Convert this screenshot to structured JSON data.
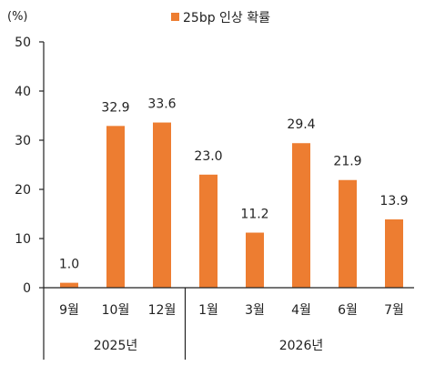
{
  "chart_data": {
    "type": "bar",
    "unit_label": "(%)",
    "legend": [
      {
        "name": "25bp 인상 확률",
        "color": "#ED7D31"
      }
    ],
    "categories": [
      "9월",
      "10월",
      "12월",
      "1월",
      "3월",
      "4월",
      "6월",
      "7월"
    ],
    "groups": [
      {
        "label": "2025년",
        "categories": [
          "9월",
          "10월",
          "12월"
        ]
      },
      {
        "label": "2026년",
        "categories": [
          "1월",
          "3월",
          "4월",
          "6월",
          "7월"
        ]
      }
    ],
    "series": [
      {
        "name": "25bp 인상 확률",
        "color": "#ED7D31",
        "values": [
          1.0,
          32.9,
          33.6,
          23.0,
          11.2,
          29.4,
          21.9,
          13.9
        ]
      }
    ],
    "data_labels": [
      "1.0",
      "32.9",
      "33.6",
      "23.0",
      "11.2",
      "29.4",
      "21.9",
      "13.9"
    ],
    "ylim": [
      0,
      50
    ],
    "yticks": [
      0,
      10,
      20,
      30,
      40,
      50
    ],
    "ytick_labels": [
      "0",
      "10",
      "20",
      "30",
      "40",
      "50"
    ],
    "grid": false,
    "legend_position": "top-center"
  }
}
